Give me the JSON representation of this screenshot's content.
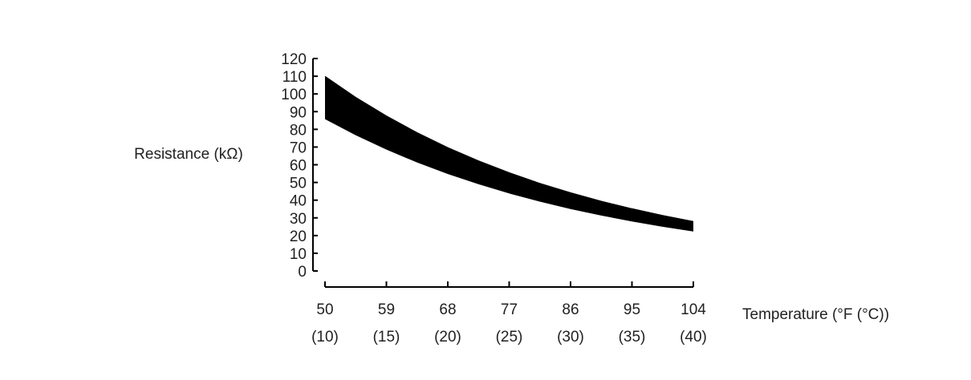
{
  "chart_data": {
    "type": "band",
    "y_label": "Resistance (kΩ)",
    "x_label": "Temperature (°F (°C))",
    "x": [
      50,
      54.5,
      59,
      63.5,
      68,
      72.5,
      77,
      81.5,
      86,
      90.5,
      95,
      99.5,
      104
    ],
    "series": [
      {
        "color": "#000000",
        "values": [
          110,
          98.1,
          87.6,
          78.1,
          69.7,
          62.2,
          55.5,
          49.5,
          44.2,
          39.4,
          35.2,
          31.4,
          28
        ]
      },
      {
        "color": "#000000",
        "values": [
          86,
          76.9,
          68.8,
          61.5,
          55.0,
          49.2,
          44.0,
          39.4,
          35.2,
          31.5,
          28.2,
          25.2,
          22.5
        ]
      }
    ],
    "xlim": [
      50,
      104
    ],
    "xticks": [
      50,
      59,
      68,
      77,
      86,
      95,
      104
    ],
    "xtick_celsius": [
      "(10)",
      "(15)",
      "(20)",
      "(25)",
      "(30)",
      "(35)",
      "(40)"
    ],
    "ylim": [
      0,
      120
    ],
    "yticks": [
      0,
      10,
      20,
      30,
      40,
      50,
      60,
      70,
      80,
      90,
      100,
      110,
      120
    ]
  }
}
